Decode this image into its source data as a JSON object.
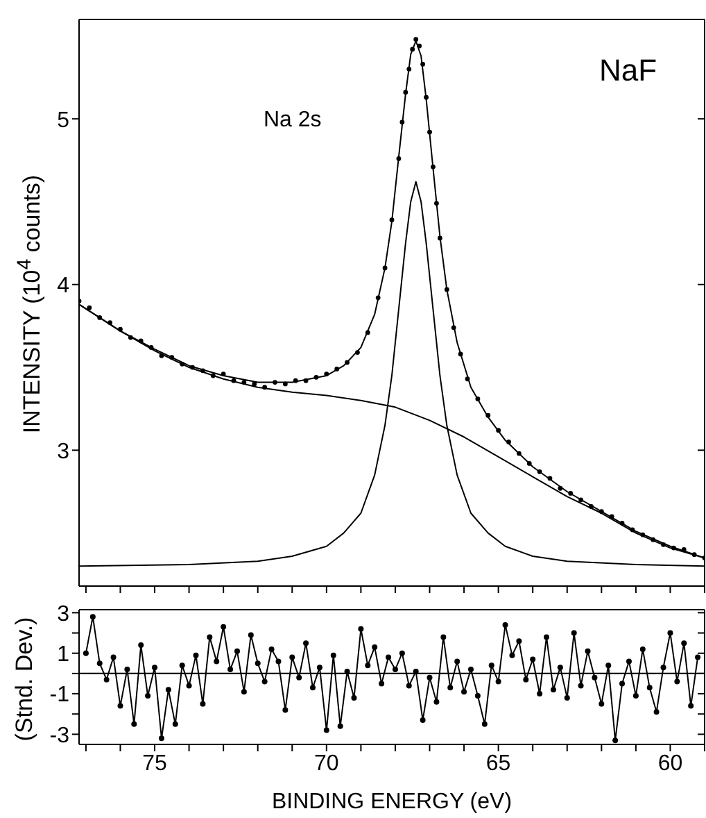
{
  "chart_data": [
    {
      "type": "line",
      "title": "NaF",
      "ylabel": "INTENSITY (10$^{4}$ counts)",
      "annotations": [
        "Na 2s"
      ],
      "xlim": [
        77.2,
        59
      ],
      "ylim": [
        2.18,
        5.6
      ],
      "xticks": [
        {
          "value": 77,
          "label": null
        },
        {
          "value": 76,
          "label": null
        },
        75,
        {
          "value": 74,
          "label": null
        },
        {
          "value": 73,
          "label": null
        },
        {
          "value": 72,
          "label": null
        },
        {
          "value": 71,
          "label": null
        },
        70,
        {
          "value": 69,
          "label": null
        },
        {
          "value": 68,
          "label": null
        },
        {
          "value": 67,
          "label": null
        },
        {
          "value": 66,
          "label": null
        },
        65,
        {
          "value": 64,
          "label": null
        },
        {
          "value": 63,
          "label": null
        },
        {
          "value": 62,
          "label": null
        },
        {
          "value": 61,
          "label": null
        },
        60,
        {
          "value": 59,
          "label": null
        }
      ],
      "yticks": [
        3,
        4,
        5
      ],
      "tick_labels": "y",
      "series": [
        {
          "type": "scatter",
          "marker": "circle",
          "color": "#000000",
          "x": [
            77.2,
            76.9,
            76.6,
            76.3,
            76.0,
            75.7,
            75.4,
            75.1,
            74.8,
            74.5,
            74.2,
            73.9,
            73.6,
            73.3,
            73.0,
            72.7,
            72.4,
            72.1,
            71.8,
            71.5,
            71.2,
            70.9,
            70.6,
            70.3,
            70.0,
            69.7,
            69.4,
            69.1,
            68.8,
            68.5,
            68.3,
            68.1,
            67.9,
            67.8,
            67.7,
            67.6,
            67.5,
            67.4,
            67.3,
            67.2,
            67.1,
            67.0,
            66.9,
            66.8,
            66.7,
            66.5,
            66.3,
            66.1,
            65.9,
            65.6,
            65.3,
            65.0,
            64.7,
            64.4,
            64.1,
            63.8,
            63.5,
            63.2,
            62.9,
            62.6,
            62.3,
            62.0,
            61.7,
            61.4,
            61.1,
            60.8,
            60.5,
            60.2,
            59.9,
            59.6,
            59.3,
            59.0
          ],
          "values": [
            3.9,
            3.86,
            3.8,
            3.77,
            3.73,
            3.68,
            3.66,
            3.62,
            3.57,
            3.56,
            3.52,
            3.5,
            3.48,
            3.45,
            3.46,
            3.42,
            3.41,
            3.4,
            3.38,
            3.41,
            3.4,
            3.42,
            3.42,
            3.44,
            3.46,
            3.49,
            3.53,
            3.59,
            3.71,
            3.92,
            4.1,
            4.39,
            4.76,
            4.98,
            5.16,
            5.3,
            5.42,
            5.48,
            5.44,
            5.33,
            5.13,
            4.92,
            4.71,
            4.49,
            4.28,
            3.97,
            3.74,
            3.58,
            3.43,
            3.31,
            3.21,
            3.12,
            3.05,
            2.98,
            2.92,
            2.87,
            2.83,
            2.77,
            2.74,
            2.7,
            2.66,
            2.63,
            2.6,
            2.56,
            2.52,
            2.49,
            2.46,
            2.43,
            2.41,
            2.4,
            2.37,
            2.35
          ]
        },
        {
          "color": "#000000",
          "x": [
            77.2,
            76,
            75,
            74,
            73,
            72,
            71,
            70,
            69.5,
            69,
            68.6,
            68.3,
            68.1,
            67.9,
            67.7,
            67.55,
            67.4,
            67.25,
            67.1,
            66.9,
            66.7,
            66.5,
            66.2,
            65.8,
            65.3,
            64.8,
            64,
            63,
            62,
            61,
            60,
            59
          ],
          "values": [
            3.88,
            3.72,
            3.61,
            3.51,
            3.45,
            3.41,
            3.41,
            3.45,
            3.51,
            3.62,
            3.82,
            4.1,
            4.38,
            4.77,
            5.15,
            5.39,
            5.47,
            5.38,
            5.12,
            4.7,
            4.29,
            3.97,
            3.65,
            3.38,
            3.2,
            3.06,
            2.9,
            2.75,
            2.63,
            2.51,
            2.42,
            2.35
          ]
        },
        {
          "color": "#000000",
          "x": [
            77.2,
            76,
            75,
            74,
            73,
            72,
            71,
            70,
            69,
            68,
            67,
            66,
            65,
            64,
            63,
            62,
            61,
            60,
            59
          ],
          "values": [
            3.88,
            3.72,
            3.6,
            3.5,
            3.43,
            3.38,
            3.35,
            3.33,
            3.3,
            3.26,
            3.18,
            3.08,
            2.96,
            2.84,
            2.72,
            2.62,
            2.5,
            2.41,
            2.35
          ]
        },
        {
          "color": "#000000",
          "x": [
            77.2,
            74,
            72,
            71,
            70,
            69.5,
            69,
            68.6,
            68.3,
            68.1,
            67.9,
            67.7,
            67.55,
            67.4,
            67.25,
            67.1,
            66.9,
            66.7,
            66.5,
            66.2,
            65.8,
            65.3,
            64.8,
            64,
            63,
            61,
            59
          ],
          "values": [
            2.3,
            2.31,
            2.33,
            2.36,
            2.42,
            2.5,
            2.62,
            2.85,
            3.15,
            3.45,
            3.85,
            4.25,
            4.5,
            4.62,
            4.5,
            4.25,
            3.85,
            3.45,
            3.15,
            2.85,
            2.62,
            2.5,
            2.42,
            2.36,
            2.33,
            2.31,
            2.3
          ]
        }
      ]
    },
    {
      "type": "line",
      "xlabel": "BINDING ENERGY (eV)",
      "ylabel": "(Stnd. Dev.)",
      "xlim": [
        77.2,
        59
      ],
      "ylim": [
        -3.5,
        3.15
      ],
      "xticks": [
        {
          "value": 77,
          "label": null
        },
        {
          "value": 76,
          "label": null
        },
        75,
        {
          "value": 74,
          "label": null
        },
        {
          "value": 73,
          "label": null
        },
        {
          "value": 72,
          "label": null
        },
        {
          "value": 71,
          "label": null
        },
        70,
        {
          "value": 69,
          "label": null
        },
        {
          "value": 68,
          "label": null
        },
        {
          "value": 67,
          "label": null
        },
        {
          "value": 66,
          "label": null
        },
        65,
        {
          "value": 64,
          "label": null
        },
        {
          "value": 63,
          "label": null
        },
        {
          "value": 62,
          "label": null
        },
        {
          "value": 61,
          "label": null
        },
        60,
        {
          "value": 59,
          "label": null
        }
      ],
      "yticks": [
        3,
        {
          "value": 2,
          "label": null
        },
        1,
        {
          "value": 0,
          "label": null
        },
        -1,
        {
          "value": -2,
          "label": null
        },
        -3
      ],
      "ref_lines": [
        {
          "axis": "y",
          "value": 0
        }
      ],
      "series": [
        {
          "marker": "circle",
          "color": "#000000",
          "x": [
            77.0,
            76.8,
            76.6,
            76.4,
            76.2,
            76.0,
            75.8,
            75.6,
            75.4,
            75.2,
            75.0,
            74.8,
            74.6,
            74.4,
            74.2,
            74.0,
            73.8,
            73.6,
            73.4,
            73.2,
            73.0,
            72.8,
            72.6,
            72.4,
            72.2,
            72.0,
            71.8,
            71.6,
            71.4,
            71.2,
            71.0,
            70.8,
            70.6,
            70.4,
            70.2,
            70.0,
            69.8,
            69.6,
            69.4,
            69.2,
            69.0,
            68.8,
            68.6,
            68.4,
            68.2,
            68.0,
            67.8,
            67.6,
            67.4,
            67.2,
            67.0,
            66.8,
            66.6,
            66.4,
            66.2,
            66.0,
            65.8,
            65.6,
            65.4,
            65.2,
            65.0,
            64.8,
            64.6,
            64.4,
            64.2,
            64.0,
            63.8,
            63.6,
            63.4,
            63.2,
            63.0,
            62.8,
            62.6,
            62.4,
            62.2,
            62.0,
            61.8,
            61.6,
            61.4,
            61.2,
            61.0,
            60.8,
            60.6,
            60.4,
            60.2,
            60.0,
            59.8,
            59.6,
            59.4,
            59.2
          ],
          "values": [
            1.0,
            2.8,
            0.5,
            -0.3,
            0.8,
            -1.6,
            0.2,
            -2.5,
            1.4,
            -1.1,
            0.3,
            -3.2,
            -0.8,
            -2.5,
            0.4,
            -0.6,
            0.9,
            -1.5,
            1.8,
            0.6,
            2.3,
            0.2,
            1.1,
            -0.9,
            1.9,
            0.5,
            -0.4,
            1.2,
            0.6,
            -1.8,
            0.8,
            -0.2,
            1.5,
            -0.7,
            0.3,
            -2.8,
            0.9,
            -2.6,
            0.1,
            -1.2,
            2.2,
            0.4,
            1.3,
            -0.5,
            0.8,
            0.2,
            1.0,
            -0.6,
            0.1,
            -2.3,
            -0.2,
            -1.4,
            1.8,
            -0.7,
            0.6,
            -0.9,
            0.2,
            -1.1,
            -2.5,
            0.4,
            -0.4,
            2.4,
            0.9,
            1.6,
            -0.3,
            0.7,
            -1.0,
            1.8,
            -0.8,
            0.3,
            -1.2,
            2.0,
            -0.6,
            1.1,
            -0.2,
            -1.5,
            0.4,
            -3.3,
            -0.5,
            0.6,
            -1.1,
            1.2,
            -0.7,
            -1.9,
            0.3,
            2.0,
            -0.4,
            1.5,
            -1.6,
            0.8
          ]
        }
      ]
    }
  ]
}
